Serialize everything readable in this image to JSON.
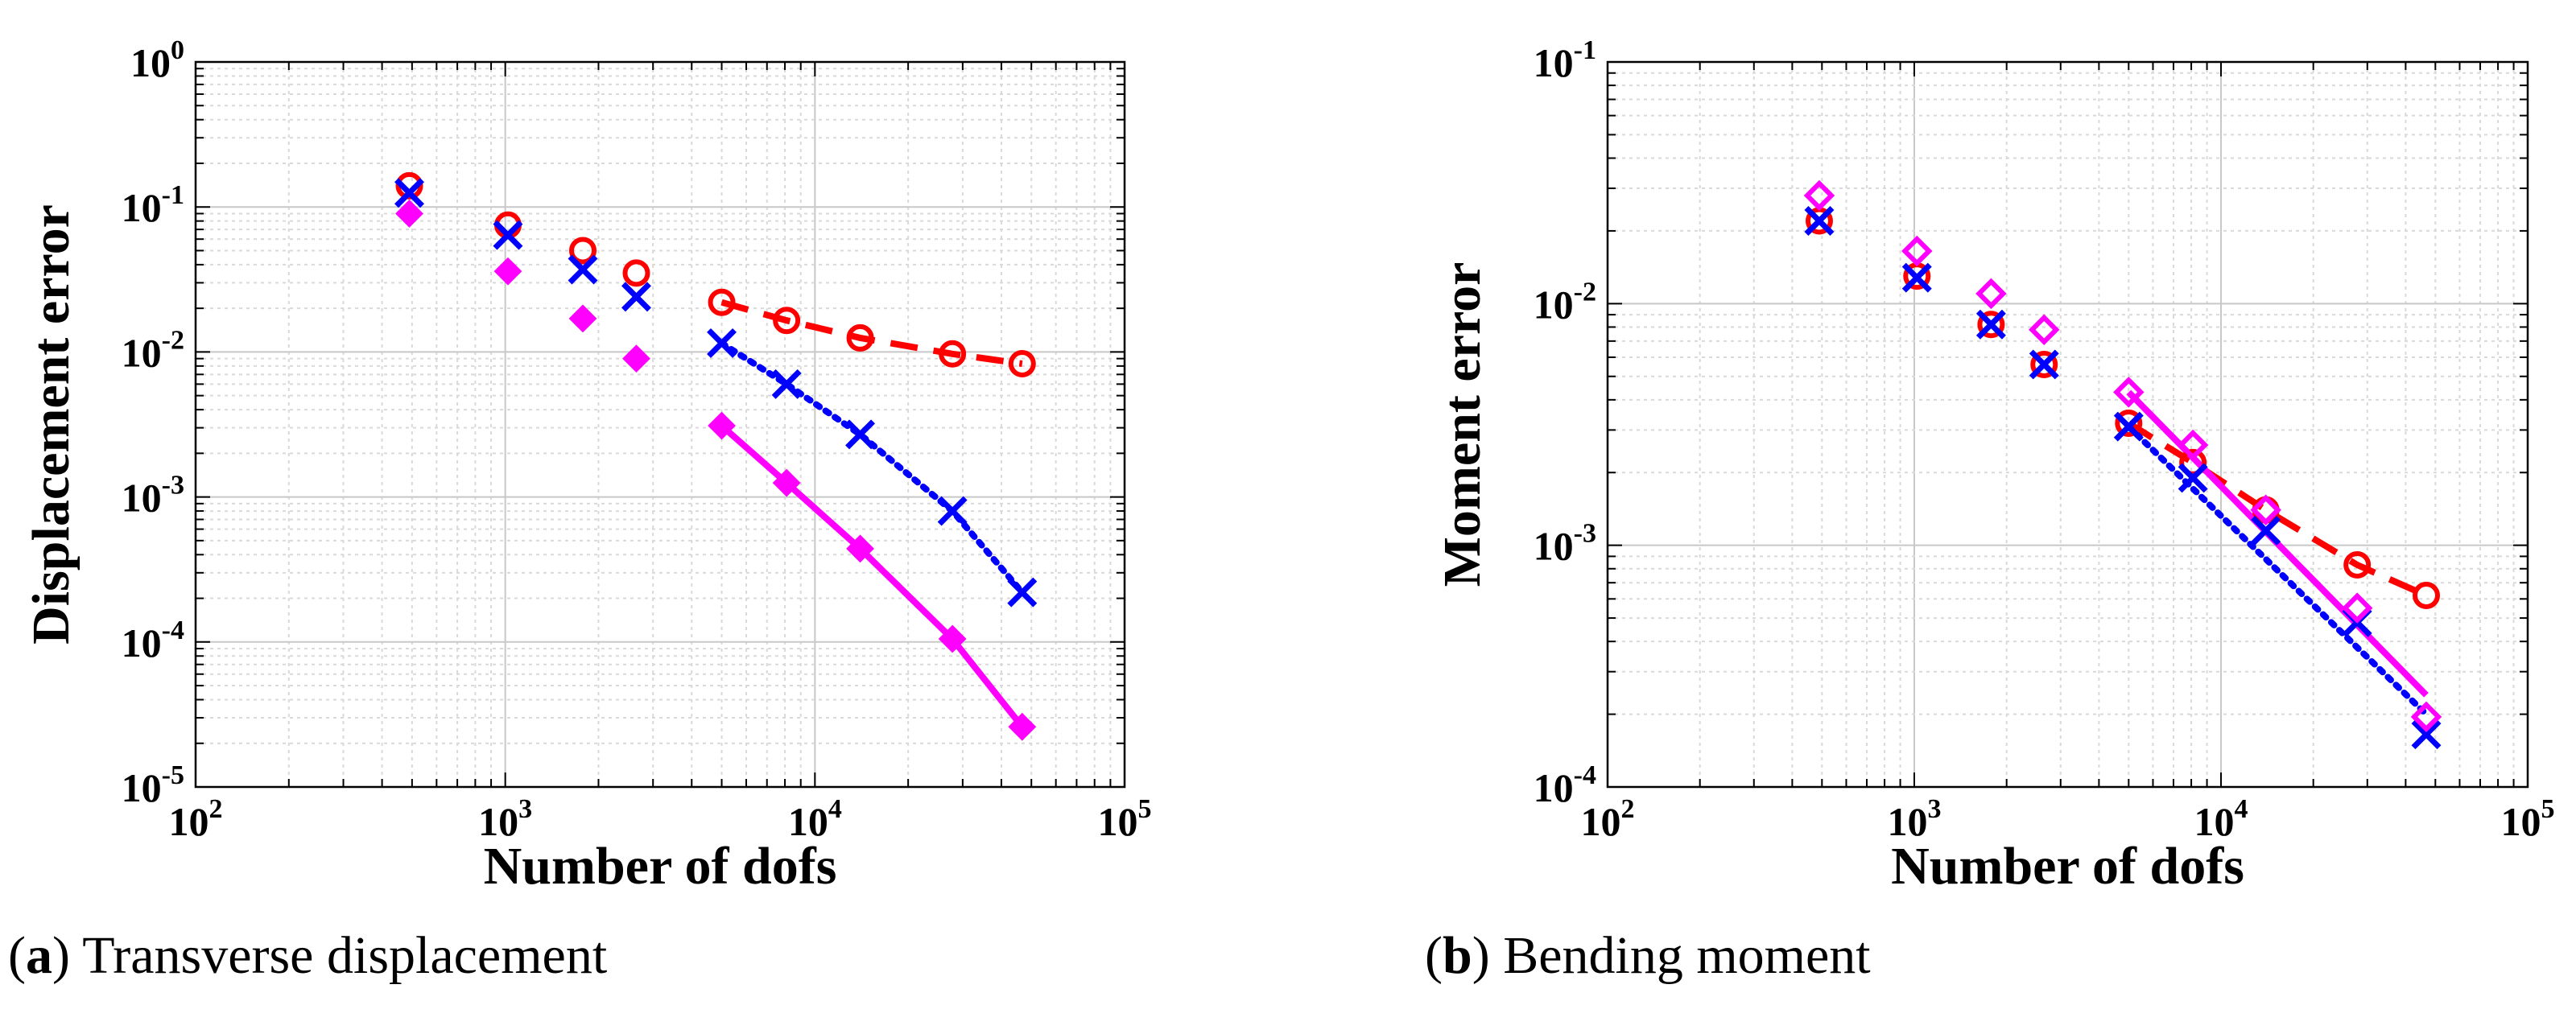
{
  "figure": {
    "captions": [
      {
        "open": "(",
        "tag": "a",
        "close": ")",
        "text": " Transverse displacement"
      },
      {
        "open": "(",
        "tag": "b",
        "close": ")",
        "text": " Bending moment"
      }
    ]
  },
  "chart_data": [
    {
      "type": "scatter",
      "xlabel": "Number of dofs",
      "ylabel": "Displacement error",
      "xscale": "log",
      "yscale": "log",
      "xlim_exp": [
        2,
        5
      ],
      "ylim_exp": [
        -5,
        0
      ],
      "xtick_exps": [
        2,
        3,
        4,
        5
      ],
      "ytick_exps": [
        -5,
        -4,
        -3,
        -2,
        -1,
        0
      ],
      "grid": true,
      "series": [
        {
          "name": "red-circles",
          "color": "#ff0000",
          "marker": "circle",
          "x": [
            490,
            1020,
            1780,
            2650,
            5000,
            8100,
            14000,
            27800,
            46700
          ],
          "y": [
            0.14,
            0.075,
            0.05,
            0.035,
            0.022,
            0.0165,
            0.0125,
            0.0097,
            0.0083
          ]
        },
        {
          "name": "blue-crosses",
          "color": "#0000ff",
          "marker": "cross",
          "x": [
            490,
            1020,
            1780,
            2650,
            5000,
            8100,
            14000,
            27800,
            46700
          ],
          "y": [
            0.125,
            0.064,
            0.037,
            0.024,
            0.0115,
            0.006,
            0.0027,
            0.0008,
            0.00022
          ]
        },
        {
          "name": "magenta-diamonds",
          "color": "#ff00ff",
          "marker": "diamond-filled",
          "x": [
            490,
            1020,
            1780,
            2650,
            5000,
            8100,
            14000,
            27800,
            46700
          ],
          "y": [
            0.09,
            0.036,
            0.017,
            0.009,
            0.0031,
            0.00125,
            0.00044,
            0.000105,
            2.6e-05
          ]
        }
      ],
      "fit_lines": [
        {
          "name": "red-dashed-fit",
          "color": "#ff0000",
          "style": "dashed",
          "x": [
            5000,
            8100,
            14000,
            27800,
            46700
          ],
          "y": [
            0.022,
            0.0165,
            0.0125,
            0.0097,
            0.0083
          ]
        },
        {
          "name": "blue-dotted-fit",
          "color": "#0000ff",
          "style": "dotted",
          "x": [
            5000,
            8100,
            14000,
            27800,
            46700
          ],
          "y": [
            0.0115,
            0.006,
            0.0027,
            0.0008,
            0.00022
          ]
        },
        {
          "name": "magenta-solid-fit",
          "color": "#ff00ff",
          "style": "solid",
          "x": [
            5000,
            8100,
            14000,
            27800,
            46700
          ],
          "y": [
            0.0031,
            0.00125,
            0.00044,
            0.000105,
            2.6e-05
          ]
        }
      ]
    },
    {
      "type": "scatter",
      "xlabel": "Number of dofs",
      "ylabel": "Moment error",
      "xscale": "log",
      "yscale": "log",
      "xlim_exp": [
        2,
        5
      ],
      "ylim_exp": [
        -4,
        -1
      ],
      "xtick_exps": [
        2,
        3,
        4,
        5
      ],
      "ytick_exps": [
        -4,
        -3,
        -2,
        -1
      ],
      "grid": true,
      "series": [
        {
          "name": "red-circles",
          "color": "#ff0000",
          "marker": "circle",
          "x": [
            490,
            1020,
            1780,
            2650,
            5000,
            8100,
            14000,
            27800,
            46700
          ],
          "y": [
            0.022,
            0.013,
            0.0082,
            0.0056,
            0.0032,
            0.0022,
            0.0014,
            0.00083,
            0.00062
          ]
        },
        {
          "name": "blue-crosses",
          "color": "#0000ff",
          "marker": "cross",
          "x": [
            490,
            1020,
            1780,
            2650,
            5000,
            8100,
            14000,
            27800,
            46700
          ],
          "y": [
            0.022,
            0.0128,
            0.0082,
            0.0056,
            0.0031,
            0.0019,
            0.00115,
            0.00048,
            0.000165
          ]
        },
        {
          "name": "magenta-diamonds",
          "color": "#ff00ff",
          "marker": "diamond-open",
          "x": [
            490,
            1020,
            1780,
            2650,
            5000,
            8100,
            14000,
            27800,
            46700
          ],
          "y": [
            0.028,
            0.0165,
            0.011,
            0.0078,
            0.0043,
            0.0026,
            0.0014,
            0.00055,
            0.000195
          ]
        }
      ],
      "fit_lines": [
        {
          "name": "red-dashed-fit",
          "color": "#ff0000",
          "style": "dashed",
          "x": [
            5000,
            8100,
            14000,
            27800,
            46700
          ],
          "y": [
            0.0032,
            0.0022,
            0.0014,
            0.00083,
            0.00062
          ]
        },
        {
          "name": "blue-dotted-fit",
          "color": "#0000ff",
          "style": "dotted",
          "x": [
            5000,
            46700
          ],
          "y": [
            0.0031,
            0.0002
          ]
        },
        {
          "name": "magenta-solid-fit",
          "color": "#ff00ff",
          "style": "solid",
          "x": [
            5000,
            46700
          ],
          "y": [
            0.0043,
            0.00024
          ]
        }
      ]
    }
  ]
}
